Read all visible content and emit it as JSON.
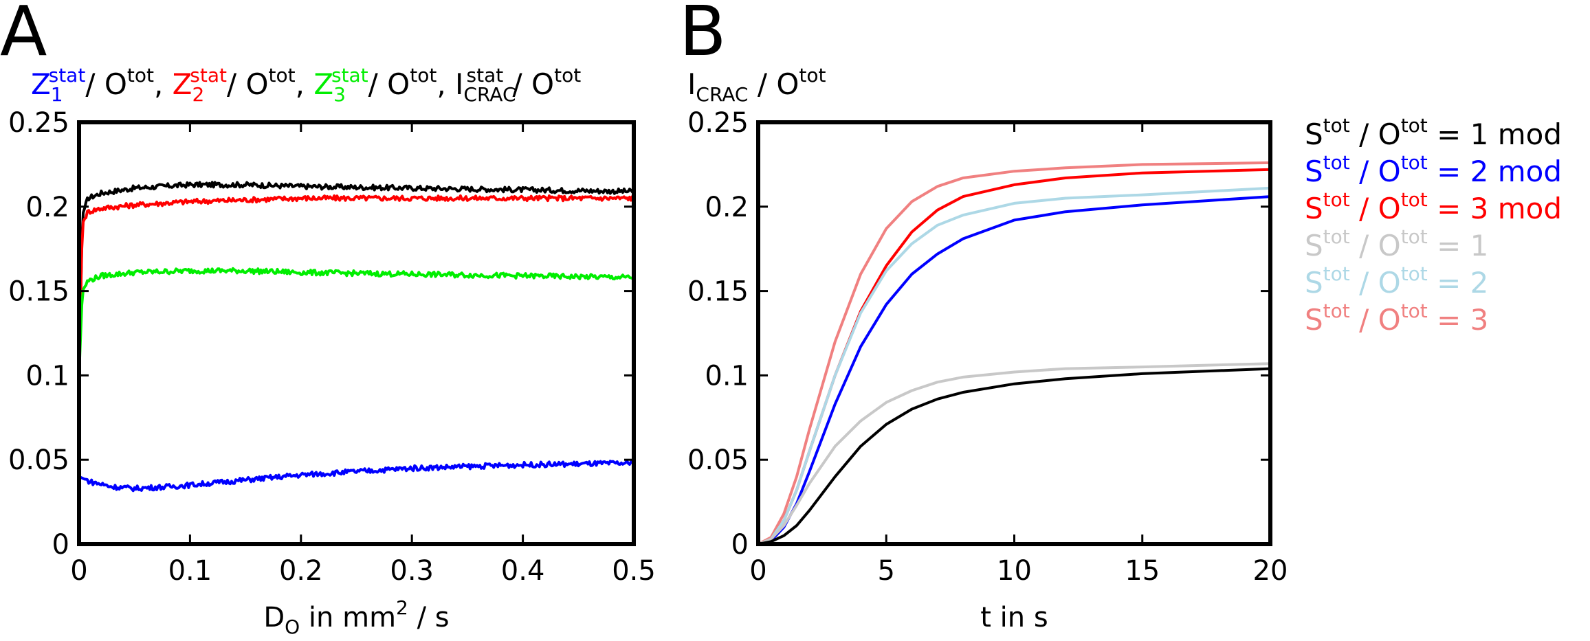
{
  "chart_data": [
    {
      "panel": "A",
      "type": "line",
      "title_parts": [
        {
          "main": "Z",
          "sub": "1",
          "sup": "stat",
          "color": "#0000ff"
        },
        {
          "main": "/ O",
          "sup": "tot",
          "color": "#000000"
        },
        {
          "main": ", ",
          "color": "#000000"
        },
        {
          "main": "Z",
          "sub": "2",
          "sup": "stat",
          "color": "#ff0000"
        },
        {
          "main": "/ O",
          "sup": "tot",
          "color": "#000000"
        },
        {
          "main": ", ",
          "color": "#000000"
        },
        {
          "main": "Z",
          "sub": "3",
          "sup": "stat",
          "color": "#00ee00"
        },
        {
          "main": "/ O",
          "sup": "tot",
          "color": "#000000"
        },
        {
          "main": ", I",
          "sub": "CRAC",
          "sup": "stat",
          "color": "#000000"
        },
        {
          "main": " / O",
          "sup": "tot",
          "color": "#000000"
        }
      ],
      "xlabel": {
        "main": "D",
        "sub": "O",
        "rest": " in mm",
        "sup": "2",
        "tail": " / s"
      },
      "xlim": [
        0,
        0.5
      ],
      "ylim": [
        0,
        0.25
      ],
      "xticks": [
        "0",
        "0.1",
        "0.2",
        "0.3",
        "0.4",
        "0.5"
      ],
      "yticks": [
        "0",
        "0.05",
        "0.1",
        "0.15",
        "0.2",
        "0.25"
      ],
      "series": [
        {
          "name": "I_CRAC",
          "color": "#000000",
          "x": [
            0,
            0.003,
            0.008,
            0.02,
            0.05,
            0.1,
            0.15,
            0.2,
            0.3,
            0.4,
            0.5
          ],
          "y": [
            0.1,
            0.195,
            0.205,
            0.208,
            0.211,
            0.213,
            0.213,
            0.212,
            0.211,
            0.21,
            0.209
          ]
        },
        {
          "name": "Z2",
          "color": "#ff0000",
          "x": [
            0,
            0.003,
            0.008,
            0.02,
            0.05,
            0.1,
            0.15,
            0.2,
            0.3,
            0.4,
            0.5
          ],
          "y": [
            0.1,
            0.19,
            0.197,
            0.199,
            0.201,
            0.203,
            0.204,
            0.205,
            0.205,
            0.205,
            0.205
          ]
        },
        {
          "name": "Z3",
          "color": "#00ee00",
          "x": [
            0,
            0.003,
            0.008,
            0.02,
            0.05,
            0.1,
            0.15,
            0.2,
            0.3,
            0.4,
            0.5
          ],
          "y": [
            0.1,
            0.15,
            0.156,
            0.159,
            0.161,
            0.162,
            0.162,
            0.161,
            0.16,
            0.159,
            0.158
          ]
        },
        {
          "name": "Z1",
          "color": "#0000ff",
          "x": [
            0,
            0.01,
            0.03,
            0.05,
            0.08,
            0.1,
            0.15,
            0.2,
            0.25,
            0.3,
            0.4,
            0.5
          ],
          "y": [
            0.04,
            0.037,
            0.034,
            0.033,
            0.034,
            0.035,
            0.038,
            0.041,
            0.043,
            0.045,
            0.047,
            0.048
          ]
        }
      ]
    },
    {
      "panel": "B",
      "type": "line",
      "title_parts": [
        {
          "main": "I",
          "sub": "CRAC",
          "color": "#000000"
        },
        {
          "main": " / O",
          "sup": "tot",
          "color": "#000000"
        }
      ],
      "xlabel": {
        "main": "t in s"
      },
      "xlim": [
        0,
        20
      ],
      "ylim": [
        0,
        0.25
      ],
      "xticks": [
        "0",
        "5",
        "10",
        "15",
        "20"
      ],
      "yticks": [
        "0",
        "0.05",
        "0.1",
        "0.15",
        "0.2",
        "0.25"
      ],
      "series": [
        {
          "name": "S/O = 3",
          "color": "#f08080",
          "x": [
            0,
            0.5,
            1,
            1.5,
            2,
            3,
            4,
            5,
            6,
            7,
            8,
            10,
            12,
            15,
            20
          ],
          "y": [
            0,
            0.004,
            0.018,
            0.04,
            0.068,
            0.12,
            0.16,
            0.187,
            0.203,
            0.212,
            0.217,
            0.221,
            0.223,
            0.225,
            0.226
          ]
        },
        {
          "name": "S/O = 3 mod",
          "color": "#ff0000",
          "x": [
            0,
            0.5,
            1,
            1.5,
            2,
            3,
            4,
            5,
            6,
            7,
            8,
            10,
            12,
            15,
            20
          ],
          "y": [
            0,
            0.003,
            0.014,
            0.032,
            0.055,
            0.1,
            0.138,
            0.165,
            0.185,
            0.198,
            0.206,
            0.213,
            0.217,
            0.22,
            0.222
          ]
        },
        {
          "name": "S/O = 2",
          "color": "#add8e6",
          "x": [
            0,
            0.5,
            1,
            1.5,
            2,
            3,
            4,
            5,
            6,
            7,
            8,
            10,
            12,
            15,
            20
          ],
          "y": [
            0,
            0.003,
            0.014,
            0.032,
            0.055,
            0.1,
            0.137,
            0.162,
            0.178,
            0.189,
            0.195,
            0.202,
            0.205,
            0.207,
            0.211
          ]
        },
        {
          "name": "S/O = 2 mod",
          "color": "#0000ff",
          "x": [
            0,
            0.5,
            1,
            1.5,
            2,
            3,
            4,
            5,
            6,
            7,
            8,
            10,
            12,
            15,
            20
          ],
          "y": [
            0,
            0.002,
            0.01,
            0.024,
            0.043,
            0.083,
            0.117,
            0.142,
            0.16,
            0.172,
            0.181,
            0.192,
            0.197,
            0.201,
            0.206
          ]
        },
        {
          "name": "S/O = 1",
          "color": "#c8c8c8",
          "x": [
            0,
            0.5,
            1,
            1.5,
            2,
            3,
            4,
            5,
            6,
            7,
            8,
            10,
            12,
            15,
            20
          ],
          "y": [
            0,
            0.003,
            0.011,
            0.023,
            0.036,
            0.058,
            0.073,
            0.084,
            0.091,
            0.096,
            0.099,
            0.102,
            0.104,
            0.105,
            0.107
          ]
        },
        {
          "name": "S/O = 1 mod",
          "color": "#000000",
          "x": [
            0,
            0.5,
            1,
            1.5,
            2,
            3,
            4,
            5,
            6,
            7,
            8,
            10,
            12,
            15,
            20
          ],
          "y": [
            0,
            0.0015,
            0.005,
            0.011,
            0.02,
            0.04,
            0.058,
            0.071,
            0.08,
            0.086,
            0.09,
            0.095,
            0.098,
            0.101,
            0.104
          ]
        }
      ]
    }
  ],
  "panel_labels": [
    "A",
    "B"
  ],
  "legend": [
    {
      "text": " / O",
      "mod_suffix": " = 1 mod",
      "color": "#000000"
    },
    {
      "text": " / O",
      "mod_suffix": " = 2 mod",
      "color": "#0000ff"
    },
    {
      "text": " / O",
      "mod_suffix": " = 3 mod",
      "color": "#ff0000"
    },
    {
      "text": " / O",
      "mod_suffix": " = 1",
      "color": "#c8c8c8"
    },
    {
      "text": " / O",
      "mod_suffix": " = 2",
      "color": "#add8e6"
    },
    {
      "text": " / O",
      "mod_suffix": " = 3",
      "color": "#f08080"
    }
  ],
  "legend_symbols": {
    "s": "S",
    "sup": "tot"
  }
}
